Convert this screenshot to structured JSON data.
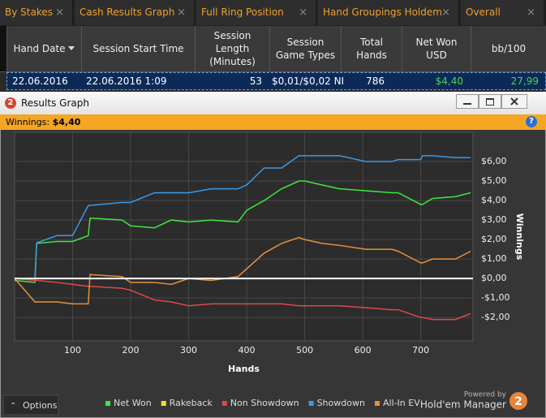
{
  "tabs": [
    "By Stakes",
    "Cash Results Graph",
    "Full Ring Position",
    "Hand Groupings Holdem",
    "Overall"
  ],
  "tab_close": "×",
  "table": {
    "columns": [
      "Hand Date",
      "Session Start Time",
      "Session Length (Minutes)",
      "Session Game Types",
      "Total Hands",
      "Net Won USD",
      "bb/100"
    ],
    "rows": [
      [
        "22.06.2016",
        "22.06.2016 1:09",
        "53",
        "$0,01/$0,02 NI",
        "786",
        "$4,40",
        "27,99"
      ]
    ]
  },
  "window": {
    "icon": "2",
    "title": "Results Graph",
    "summary_label": "Winnings:",
    "summary_value": "$4,40",
    "help": "?"
  },
  "chart_data": {
    "type": "line",
    "x_label": "Hands",
    "y_label": "Winnings",
    "x": [
      0,
      35,
      38,
      73,
      100,
      127,
      130,
      185,
      200,
      241,
      270,
      300,
      339,
      385,
      400,
      430,
      460,
      490,
      500,
      530,
      560,
      605,
      650,
      661,
      700,
      703,
      720,
      760,
      786
    ],
    "series": [
      {
        "name": "Net Won",
        "color": "#3ee83e",
        "values": [
          -0.1,
          -0.2,
          1.8,
          1.9,
          1.9,
          2.2,
          3.1,
          3.0,
          2.7,
          2.6,
          3.0,
          2.9,
          3.0,
          2.9,
          3.5,
          4.0,
          4.6,
          5.0,
          5.0,
          4.8,
          4.6,
          4.5,
          4.4,
          4.4,
          3.8,
          3.8,
          4.1,
          4.2,
          4.4
        ]
      },
      {
        "name": "Rakeback",
        "color": "#f0e030",
        "values": [
          0,
          0,
          0,
          0,
          0,
          0,
          0,
          0,
          0,
          0,
          0,
          0,
          0,
          0,
          0,
          0,
          0,
          0,
          0,
          0,
          0,
          0,
          0,
          0,
          0,
          0,
          0,
          0,
          0
        ]
      },
      {
        "name": "Non Showdown",
        "color": "#e04848",
        "values": [
          0,
          -0.1,
          -0.1,
          -0.2,
          -0.3,
          -0.4,
          -0.4,
          -0.5,
          -0.6,
          -1.1,
          -1.2,
          -1.4,
          -1.3,
          -1.3,
          -1.3,
          -1.3,
          -1.3,
          -1.4,
          -1.4,
          -1.4,
          -1.4,
          -1.5,
          -1.6,
          -1.6,
          -2.0,
          -2.0,
          -2.1,
          -2.1,
          -1.8
        ]
      },
      {
        "name": "Showdown",
        "color": "#3a9ae8",
        "values": [
          0,
          0,
          1.83,
          2.2,
          2.2,
          3.75,
          3.75,
          3.9,
          3.9,
          4.4,
          4.4,
          4.4,
          4.6,
          4.6,
          4.8,
          5.67,
          5.67,
          6.3,
          6.3,
          6.3,
          6.3,
          6.0,
          6.0,
          6.1,
          6.1,
          6.3,
          6.3,
          6.2,
          6.2
        ]
      },
      {
        "name": "All-In EV",
        "color": "#e8903a",
        "values": [
          0,
          -1.2,
          -1.2,
          -1.2,
          -1.3,
          -1.3,
          0.2,
          0.1,
          -0.2,
          -0.2,
          -0.3,
          0,
          -0.1,
          0.1,
          0.5,
          1.3,
          1.8,
          2.1,
          2.0,
          1.8,
          1.7,
          1.5,
          1.5,
          1.4,
          0.8,
          0.8,
          1.0,
          1.0,
          1.4
        ]
      }
    ],
    "xlim": [
      0,
      790
    ],
    "ylim": [
      -3.2,
      7.5
    ],
    "xticks": [
      100,
      200,
      300,
      400,
      500,
      600,
      700
    ],
    "yticks": [
      {
        "value": -2,
        "label": "-$2,00"
      },
      {
        "value": -1,
        "label": "-$1,00"
      },
      {
        "value": 0,
        "label": "$0,00"
      },
      {
        "value": 1,
        "label": "$1,00"
      },
      {
        "value": 2,
        "label": "$2,00"
      },
      {
        "value": 3,
        "label": "$3,00"
      },
      {
        "value": 4,
        "label": "$4,00"
      },
      {
        "value": 5,
        "label": "$5,00"
      },
      {
        "value": 6,
        "label": "$6,00"
      }
    ],
    "grid": true,
    "legend": "bottom"
  },
  "footer": {
    "options": "Options",
    "powered_by": "Powered by",
    "brand": "Hold'em Manager",
    "logo": "2"
  }
}
